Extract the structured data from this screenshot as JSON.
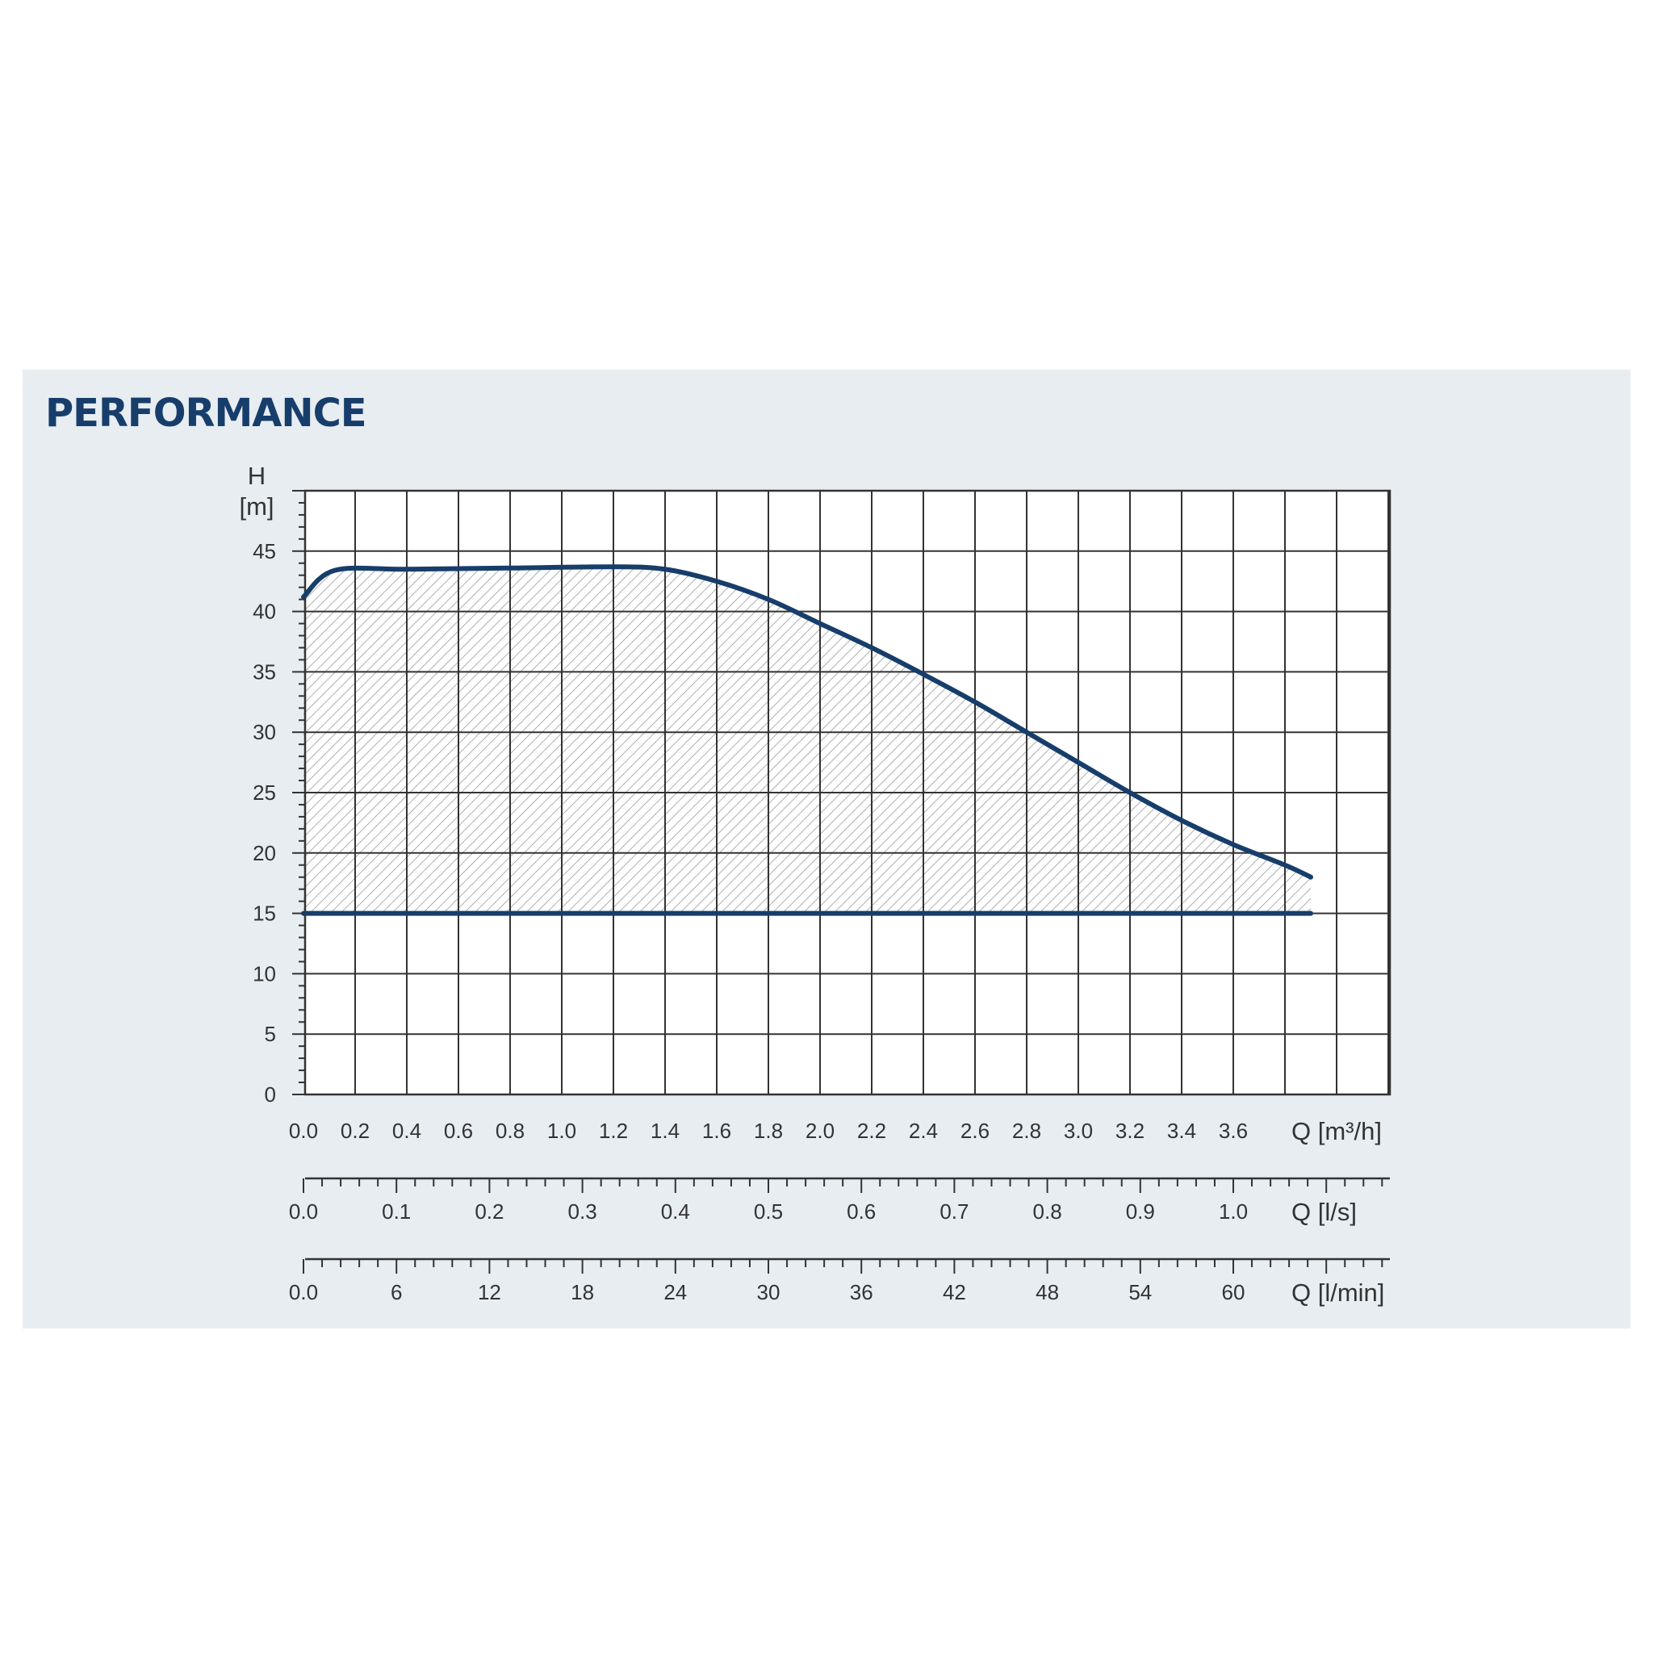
{
  "title": "PERFORMANCE",
  "colors": {
    "panel": "#e8edf1",
    "curve": "#173e6b",
    "title": "#173e6b",
    "grid": "#333333",
    "hatch": "#9a9a9a"
  },
  "chart_data": {
    "type": "line",
    "y_axis": {
      "label_top": "H",
      "label_unit": "[m]",
      "ylim": [
        0,
        50
      ],
      "ticks": [
        0,
        5,
        10,
        15,
        20,
        25,
        30,
        35,
        40,
        45
      ]
    },
    "x_axis": {
      "label": "Q [m³/h]",
      "xlim": [
        0,
        4.2
      ],
      "ticks": [
        "0.0",
        "0.2",
        "0.4",
        "0.6",
        "0.8",
        "1.0",
        "1.2",
        "1.4",
        "1.6",
        "1.8",
        "2.0",
        "2.2",
        "2.4",
        "2.6",
        "2.8",
        "3.0",
        "3.2",
        "3.4",
        "3.6"
      ]
    },
    "secondary_axes": [
      {
        "label": "Q [l/s]",
        "ticks": [
          "0.0",
          "0.1",
          "0.2",
          "0.3",
          "0.4",
          "0.5",
          "0.6",
          "0.7",
          "0.8",
          "0.9",
          "1.0"
        ],
        "step": 0.1,
        "m3h_per_unit": 3.6
      },
      {
        "label": "Q [l/min]",
        "ticks": [
          "0.0",
          "6",
          "12",
          "18",
          "24",
          "30",
          "36",
          "42",
          "48",
          "54",
          "60"
        ],
        "step": 6,
        "m3h_per_unit": 0.06
      }
    ],
    "grid": true,
    "series": [
      {
        "role": "max-curve",
        "x": [
          0.0,
          0.12,
          0.4,
          0.8,
          1.2,
          1.4,
          1.6,
          1.8,
          2.0,
          2.2,
          2.4,
          2.6,
          2.8,
          3.0,
          3.2,
          3.4,
          3.6,
          3.8,
          3.9
        ],
        "y": [
          41.2,
          43.4,
          43.5,
          43.6,
          43.7,
          43.5,
          42.5,
          41.0,
          39.0,
          37.0,
          34.8,
          32.5,
          30.0,
          27.5,
          25.0,
          22.7,
          20.7,
          19.0,
          18.0
        ]
      },
      {
        "role": "min-curve",
        "x": [
          0.0,
          3.9
        ],
        "y": [
          15,
          15
        ]
      }
    ],
    "shaded_region": "between max-curve and min-curve"
  }
}
